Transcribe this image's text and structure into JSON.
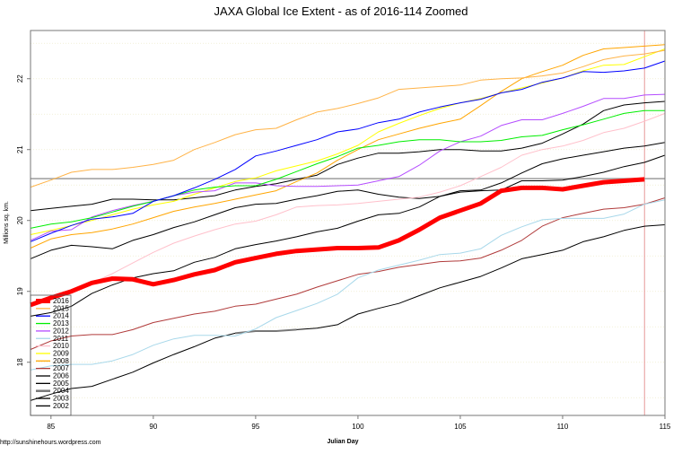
{
  "chart_data": {
    "type": "line",
    "title": "JAXA Global Ice Extent - as of 2016-114 Zoomed",
    "xlabel": "Julian Day",
    "ylabel": "Millions sq. km.",
    "xlim": [
      84,
      115
    ],
    "ylim": [
      17.25,
      22.68
    ],
    "x_ticks": [
      85,
      90,
      95,
      100,
      105,
      110,
      115
    ],
    "y_ticks": [
      18,
      19,
      20,
      21,
      22
    ],
    "grid": "dotted horizontal at 0.5 intervals",
    "legend_position": "bottom-left",
    "reference_hline": 20.59,
    "reference_vline": 114,
    "x": [
      84,
      85,
      86,
      87,
      88,
      89,
      90,
      91,
      92,
      93,
      94,
      95,
      96,
      97,
      98,
      99,
      100,
      101,
      102,
      103,
      104,
      105,
      106,
      107,
      108,
      109,
      110,
      111,
      112,
      113,
      114,
      115
    ],
    "series": [
      {
        "name": "2016",
        "color": "#ff0000",
        "values": [
          18.81,
          18.91,
          19.0,
          19.12,
          19.18,
          19.17,
          19.1,
          19.16,
          19.24,
          19.3,
          19.41,
          19.47,
          19.53,
          19.57,
          19.59,
          19.61,
          19.61,
          19.62,
          19.72,
          19.87,
          20.04,
          20.14,
          20.24,
          20.42,
          20.46,
          20.46,
          20.44,
          20.49,
          20.54,
          20.56,
          20.58,
          null
        ]
      },
      {
        "name": "2015",
        "color": "#ffb347",
        "values": [
          20.47,
          20.57,
          20.68,
          20.72,
          20.72,
          20.75,
          20.79,
          20.85,
          21.0,
          21.1,
          21.21,
          21.28,
          21.3,
          21.42,
          21.53,
          21.58,
          21.65,
          21.73,
          21.85,
          21.87,
          21.89,
          21.91,
          21.98,
          22.0,
          22.01,
          22.04,
          22.08,
          22.17,
          22.27,
          22.32,
          22.35,
          22.4
        ]
      },
      {
        "name": "2014",
        "color": "#0000ff",
        "values": [
          19.7,
          19.82,
          19.93,
          20.02,
          20.05,
          20.1,
          20.27,
          20.35,
          20.46,
          20.58,
          20.72,
          20.91,
          20.98,
          21.06,
          21.14,
          21.25,
          21.29,
          21.38,
          21.43,
          21.53,
          21.6,
          21.66,
          21.71,
          21.8,
          21.85,
          21.95,
          22.01,
          22.1,
          22.09,
          22.11,
          22.15,
          22.25
        ]
      },
      {
        "name": "2013",
        "color": "#00ee00",
        "values": [
          19.89,
          19.95,
          19.98,
          20.04,
          20.12,
          20.2,
          20.27,
          20.35,
          20.43,
          20.47,
          20.49,
          20.49,
          20.58,
          20.69,
          20.8,
          20.9,
          21.02,
          21.06,
          21.11,
          21.14,
          21.14,
          21.11,
          21.11,
          21.13,
          21.18,
          21.2,
          21.28,
          21.35,
          21.43,
          21.51,
          21.55,
          21.55
        ]
      },
      {
        "name": "2012",
        "color": "#b44cff",
        "values": [
          19.72,
          19.85,
          19.87,
          20.05,
          20.14,
          20.21,
          20.27,
          20.35,
          20.4,
          20.42,
          20.53,
          20.53,
          20.49,
          20.48,
          20.48,
          20.49,
          20.5,
          20.56,
          20.62,
          20.78,
          20.98,
          21.11,
          21.19,
          21.34,
          21.42,
          21.42,
          21.51,
          21.61,
          21.72,
          21.72,
          21.77,
          21.78
        ]
      },
      {
        "name": "2011",
        "color": "#a8d8ea",
        "values": [
          17.89,
          17.95,
          17.97,
          17.97,
          18.02,
          18.11,
          18.24,
          18.33,
          18.38,
          18.38,
          18.37,
          18.47,
          18.63,
          18.73,
          18.83,
          18.96,
          19.19,
          19.3,
          19.37,
          19.44,
          19.52,
          19.54,
          19.6,
          19.79,
          19.91,
          20.01,
          20.03,
          20.03,
          20.03,
          20.09,
          20.23,
          20.29
        ]
      },
      {
        "name": "2010",
        "color": "#ffc0cb",
        "values": [
          18.78,
          18.88,
          19.0,
          19.12,
          19.25,
          19.4,
          19.55,
          19.68,
          19.78,
          19.87,
          19.95,
          19.99,
          20.08,
          20.19,
          20.21,
          20.22,
          20.24,
          20.27,
          20.3,
          20.33,
          20.4,
          20.49,
          20.62,
          20.75,
          20.92,
          21.0,
          21.05,
          21.13,
          21.24,
          21.3,
          21.4,
          21.51
        ]
      },
      {
        "name": "2009",
        "color": "#ffff00",
        "values": [
          19.8,
          19.86,
          19.93,
          20.0,
          20.08,
          20.16,
          20.22,
          20.27,
          20.37,
          20.46,
          20.55,
          20.6,
          20.7,
          20.77,
          20.84,
          20.94,
          21.06,
          21.25,
          21.37,
          21.48,
          21.58,
          21.66,
          21.72,
          21.8,
          21.87,
          21.94,
          22.01,
          22.11,
          22.19,
          22.2,
          22.31,
          22.42
        ]
      },
      {
        "name": "2008",
        "color": "#ffa500",
        "values": [
          19.61,
          19.74,
          19.8,
          19.83,
          19.88,
          19.95,
          20.04,
          20.13,
          20.19,
          20.24,
          20.3,
          20.36,
          20.42,
          20.55,
          20.67,
          20.85,
          21.0,
          21.14,
          21.22,
          21.3,
          21.37,
          21.43,
          21.62,
          21.82,
          22.0,
          22.1,
          22.19,
          22.33,
          22.42,
          22.44,
          22.46,
          22.48
        ]
      },
      {
        "name": "2007",
        "color": "#b03a3a",
        "values": [
          18.18,
          18.3,
          18.37,
          18.39,
          18.39,
          18.46,
          18.56,
          18.62,
          18.68,
          18.72,
          18.79,
          18.82,
          18.89,
          18.96,
          19.06,
          19.15,
          19.24,
          19.28,
          19.34,
          19.38,
          19.42,
          19.43,
          19.47,
          19.58,
          19.72,
          19.92,
          20.04,
          20.1,
          20.16,
          20.18,
          20.23,
          20.32
        ]
      },
      {
        "name": "2006",
        "color": "#000000",
        "values": [
          20.14,
          20.17,
          20.2,
          20.23,
          20.3,
          20.3,
          20.29,
          20.29,
          20.32,
          20.35,
          20.43,
          20.48,
          20.52,
          20.58,
          20.64,
          20.79,
          20.88,
          20.95,
          20.95,
          20.97,
          21.0,
          21.0,
          20.98,
          20.98,
          21.02,
          21.09,
          21.22,
          21.36,
          21.55,
          21.63,
          21.66,
          21.68
        ]
      },
      {
        "name": "2005",
        "color": "#000000",
        "values": [
          19.46,
          19.58,
          19.65,
          19.63,
          19.6,
          19.72,
          19.8,
          19.9,
          19.98,
          20.08,
          20.18,
          20.23,
          20.24,
          20.3,
          20.35,
          20.41,
          20.43,
          20.37,
          20.33,
          20.31,
          20.34,
          20.42,
          20.43,
          20.53,
          20.67,
          20.8,
          20.87,
          20.92,
          20.97,
          21.02,
          21.05,
          21.1
        ]
      },
      {
        "name": "2004",
        "color": "#777777",
        "values": [
          null,
          null,
          null,
          null,
          null,
          null,
          null,
          null,
          null,
          null,
          18.41,
          18.44,
          18.44,
          18.46,
          null,
          null,
          null,
          null,
          null,
          null,
          null,
          null,
          null,
          null,
          null,
          null,
          null,
          null,
          null,
          null,
          null,
          null
        ]
      },
      {
        "name": "2003",
        "color": "#000000",
        "values": [
          18.65,
          18.7,
          18.79,
          18.97,
          19.09,
          19.19,
          19.25,
          19.29,
          19.41,
          19.48,
          19.6,
          19.66,
          19.71,
          19.77,
          19.84,
          19.89,
          19.99,
          20.08,
          20.1,
          20.19,
          20.34,
          20.4,
          20.42,
          20.43,
          20.56,
          20.56,
          20.57,
          20.62,
          20.68,
          20.76,
          20.82,
          20.92
        ]
      },
      {
        "name": "2002",
        "color": "#000000",
        "values": [
          17.46,
          17.55,
          17.63,
          17.66,
          17.76,
          17.86,
          17.99,
          18.11,
          18.22,
          18.34,
          18.41,
          18.44,
          18.44,
          18.46,
          18.48,
          18.53,
          18.68,
          18.76,
          18.83,
          18.94,
          19.05,
          19.13,
          19.21,
          19.33,
          19.46,
          19.52,
          19.58,
          19.7,
          19.77,
          19.86,
          19.92,
          19.94
        ]
      }
    ]
  },
  "footer": {
    "source": "http://sunshinehours.wordpress.com"
  }
}
